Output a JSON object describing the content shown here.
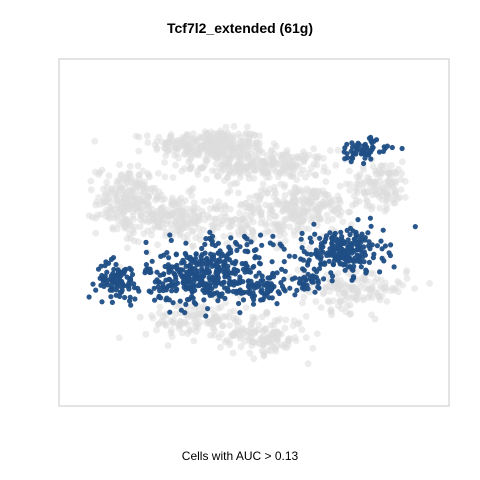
{
  "chart_data": {
    "type": "scatter",
    "title": "Tcf7l2_extended (61g)",
    "xlabel": "Cells with AUC > 0.13",
    "ylabel": "",
    "grid": false,
    "axes_ticks": false,
    "colors": {
      "background_cells": "#dcdcdc",
      "highlight_cells": "#1f4e85"
    },
    "series": [
      {
        "role": "background",
        "clusters": [
          {
            "center": [
              -0.25,
              0.55
            ],
            "spread": [
              0.26,
              0.08
            ],
            "n": 260
          },
          {
            "center": [
              0.05,
              0.42
            ],
            "spread": [
              0.32,
              0.08
            ],
            "n": 240
          },
          {
            "center": [
              -0.7,
              0.2
            ],
            "spread": [
              0.14,
              0.18
            ],
            "n": 220
          },
          {
            "center": [
              -0.45,
              0.1
            ],
            "spread": [
              0.2,
              0.12
            ],
            "n": 160
          },
          {
            "center": [
              0.25,
              0.18
            ],
            "spread": [
              0.28,
              0.1
            ],
            "n": 200
          },
          {
            "center": [
              0.7,
              0.3
            ],
            "spread": [
              0.14,
              0.12
            ],
            "n": 120
          },
          {
            "center": [
              0.55,
              -0.35
            ],
            "spread": [
              0.25,
              0.12
            ],
            "n": 150
          },
          {
            "center": [
              0.05,
              -0.65
            ],
            "spread": [
              0.2,
              0.1
            ],
            "n": 130
          },
          {
            "center": [
              -0.3,
              -0.55
            ],
            "spread": [
              0.25,
              0.1
            ],
            "n": 120
          },
          {
            "center": [
              0.0,
              0.05
            ],
            "spread": [
              0.35,
              0.1
            ],
            "n": 140
          }
        ]
      },
      {
        "role": "highlight",
        "clusters": [
          {
            "center": [
              -0.28,
              -0.28
            ],
            "spread": [
              0.26,
              0.14
            ],
            "n": 360
          },
          {
            "center": [
              -0.75,
              -0.3
            ],
            "spread": [
              0.1,
              0.1
            ],
            "n": 90
          },
          {
            "center": [
              0.07,
              -0.35
            ],
            "spread": [
              0.1,
              0.08
            ],
            "n": 60
          },
          {
            "center": [
              0.5,
              -0.12
            ],
            "spread": [
              0.18,
              0.12
            ],
            "n": 220
          },
          {
            "center": [
              0.6,
              0.52
            ],
            "spread": [
              0.12,
              0.06
            ],
            "n": 60
          },
          {
            "center": [
              0.3,
              -0.3
            ],
            "spread": [
              0.1,
              0.06
            ],
            "n": 40
          },
          {
            "center": [
              -0.1,
              -0.1
            ],
            "spread": [
              0.3,
              0.08
            ],
            "n": 60
          }
        ]
      }
    ],
    "xlim": [
      -1,
      1
    ],
    "ylim": [
      -1,
      1
    ]
  }
}
